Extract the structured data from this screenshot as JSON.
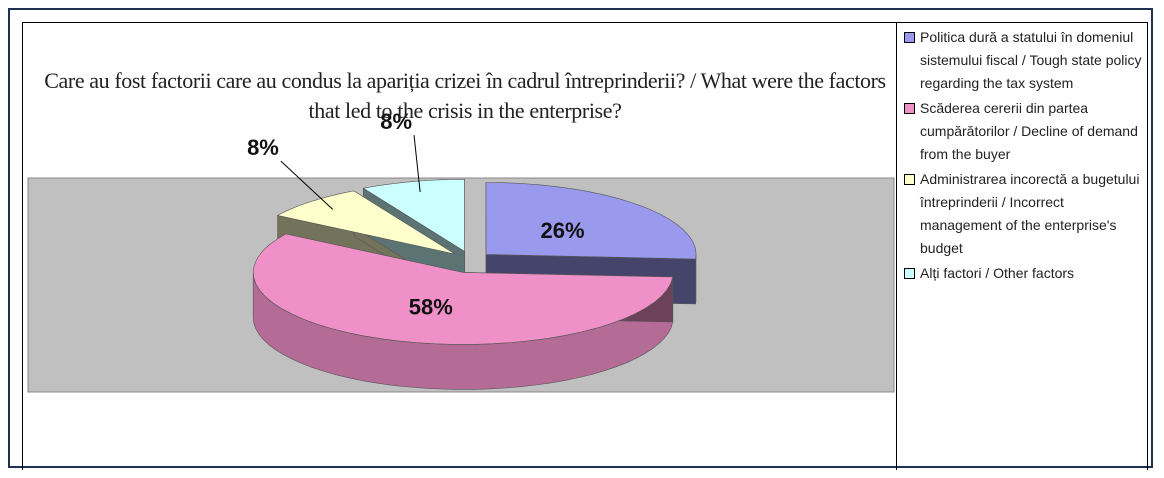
{
  "chart_data": {
    "type": "pie",
    "title": "Care au fost factorii care au condus la apariția crizei în cadrul întreprinderii? / What were the factors that led to the crisis in the enterprise?",
    "categories": [
      "Politica dură a statului în domeniul sistemului fiscal / Tough state policy regarding the tax system",
      "Scăderea cererii din partea cumpărătorilor / Decline of demand from the buyer",
      "Administrarea incorectă a bugetului întreprinderii / Incorrect management of the enterprise's budget",
      "Alți factori / Other factors"
    ],
    "values": [
      26,
      58,
      8,
      8
    ],
    "value_labels": [
      "26%",
      "58%",
      "8%",
      "8%"
    ],
    "colors": [
      "#9999ee",
      "#f090c8",
      "#ffffcc",
      "#ccffff"
    ],
    "legend": "right"
  }
}
